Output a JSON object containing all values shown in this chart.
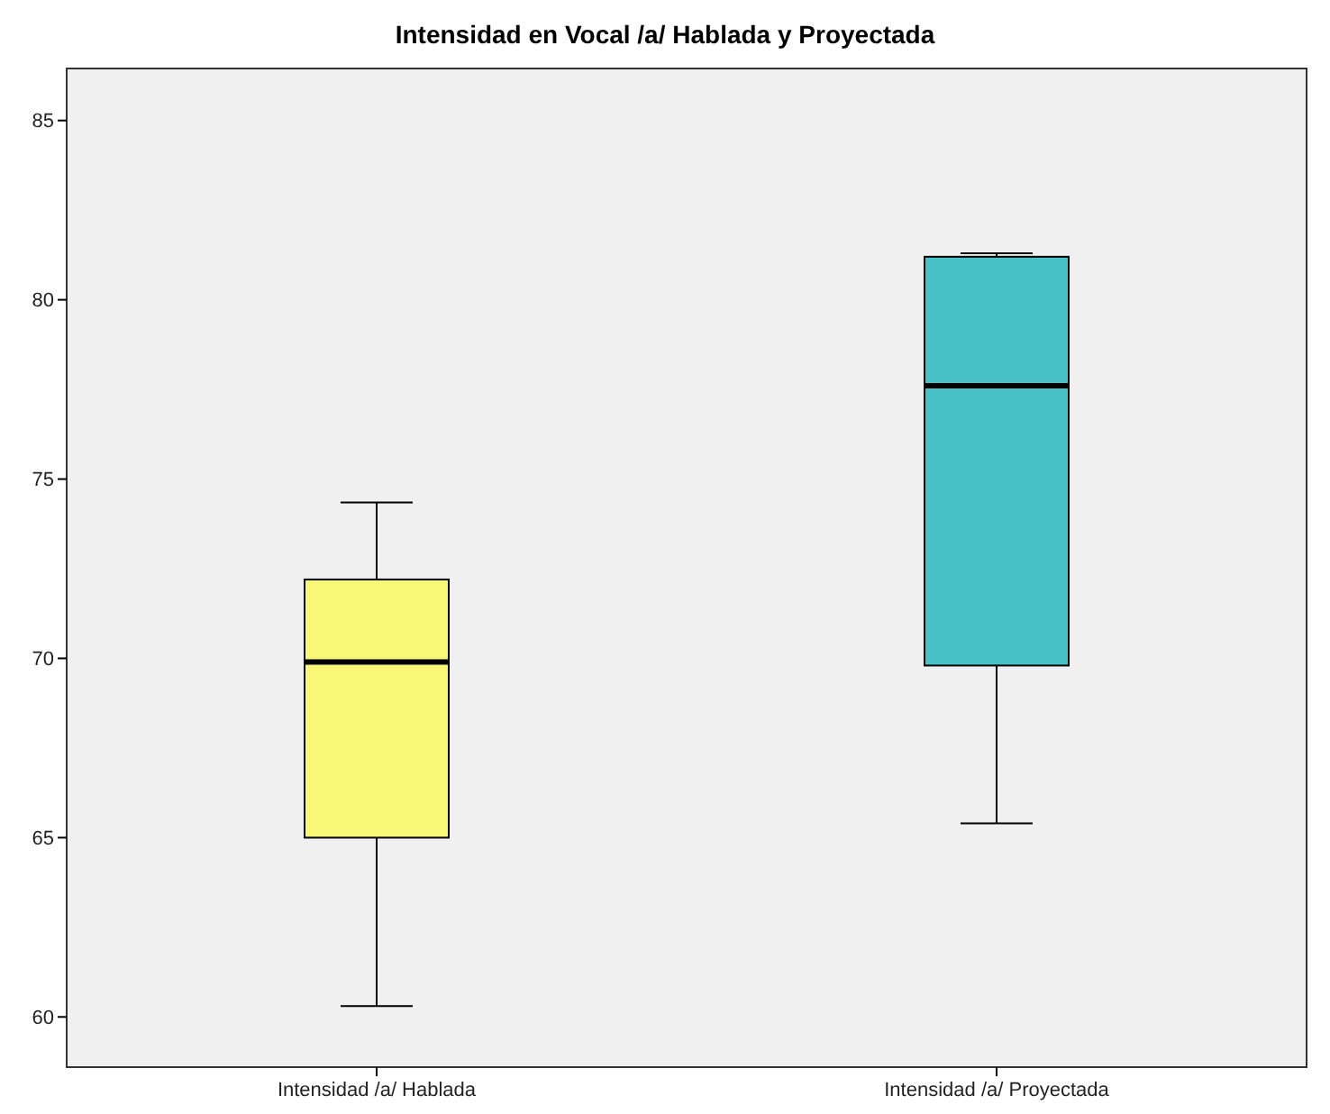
{
  "chart_data": {
    "type": "box",
    "title": "Intensidad en Vocal /a/ Hablada y Proyectada",
    "categories": [
      "Intensidad /a/ Hablada",
      "Intensidad /a/ Proyectada"
    ],
    "colors": [
      "#f9f777",
      "#48c2c6"
    ],
    "boxes": [
      {
        "low": 60.3,
        "q1": 65.0,
        "median": 69.9,
        "q3": 72.2,
        "high": 74.35
      },
      {
        "low": 65.4,
        "q1": 69.8,
        "median": 77.6,
        "q3": 81.2,
        "high": 81.3
      }
    ],
    "ylim": [
      58.6,
      86.45
    ],
    "yticks": [
      60,
      65,
      70,
      75,
      80,
      85
    ],
    "grid": false
  }
}
